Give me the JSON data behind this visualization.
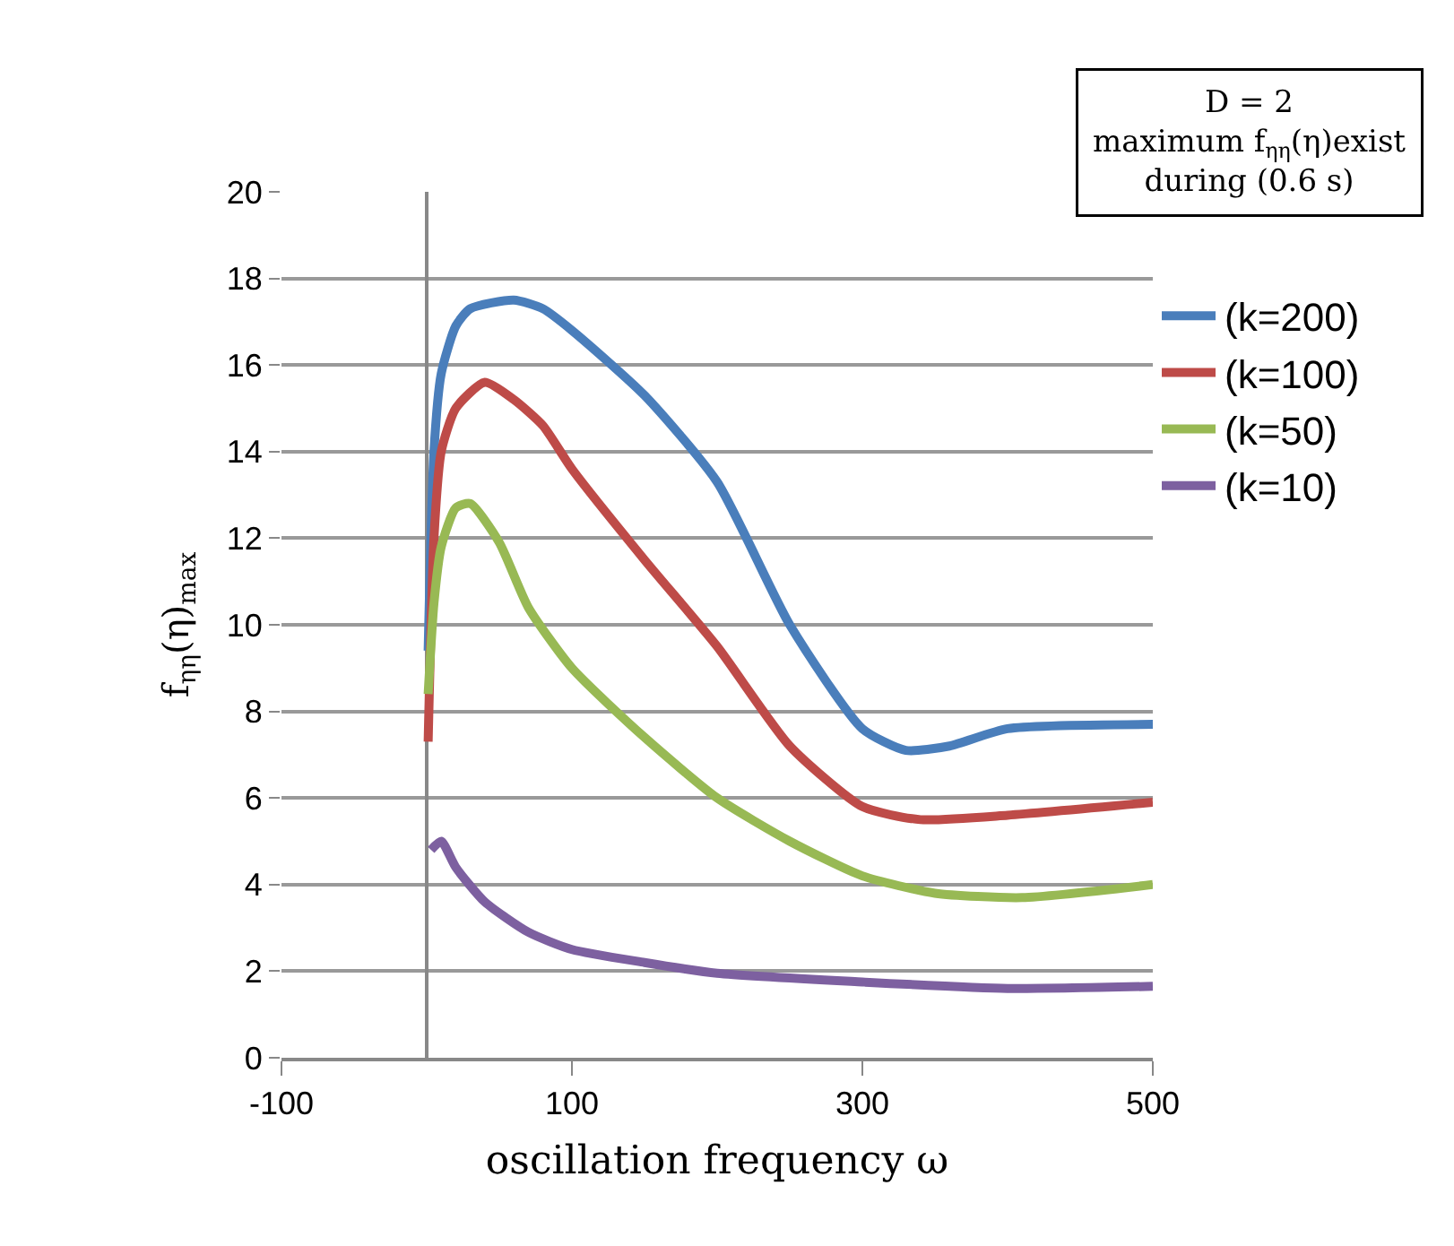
{
  "chart_data": {
    "type": "line",
    "xlabel": "oscillation frequency ω",
    "ylabel": "f$_{ηη}$(η)$_{max}$",
    "annotations": [
      "D = 2\nmaximum f$_{ηη}$(η)exist\nduring (0.6 s)"
    ],
    "xlim": [
      -100,
      500
    ],
    "xticks": [
      -100,
      100,
      300,
      500
    ],
    "ylim": [
      0,
      20
    ],
    "yticks": [
      0,
      2,
      4,
      6,
      8,
      10,
      12,
      14,
      16,
      18,
      20
    ],
    "grid": "y",
    "legend": "right",
    "marker": "none",
    "line_style": "solid",
    "series": [
      {
        "name": "(k=200)",
        "color": "#4a7ebb",
        "x": [
          1,
          5,
          10,
          20,
          30,
          60,
          80,
          100,
          150,
          200,
          250,
          300,
          330,
          360,
          400,
          500
        ],
        "values": [
          9.4,
          14,
          15.8,
          16.9,
          17.3,
          17.5,
          17.3,
          16.8,
          15.3,
          13.3,
          10,
          7.6,
          7.1,
          7.2,
          7.6,
          7.7
        ]
      },
      {
        "name": "(k=100)",
        "color": "#be4b48",
        "x": [
          1,
          5,
          10,
          20,
          40,
          60,
          80,
          100,
          150,
          200,
          250,
          300,
          340,
          400,
          500
        ],
        "values": [
          7.3,
          12,
          14,
          15,
          15.6,
          15.2,
          14.6,
          13.6,
          11.5,
          9.5,
          7.2,
          5.8,
          5.5,
          5.6,
          5.9
        ]
      },
      {
        "name": "(k=50)",
        "color": "#98b954",
        "x": [
          1,
          5,
          10,
          20,
          30,
          50,
          70,
          100,
          150,
          200,
          250,
          300,
          350,
          410,
          500
        ],
        "values": [
          8.4,
          10.5,
          11.8,
          12.7,
          12.8,
          11.9,
          10.4,
          9.0,
          7.4,
          6.0,
          5.0,
          4.2,
          3.8,
          3.7,
          4.0
        ]
      },
      {
        "name": "(k=10)",
        "color": "#7d60a0",
        "x": [
          3,
          10,
          20,
          40,
          70,
          100,
          150,
          200,
          300,
          400,
          500
        ],
        "values": [
          4.8,
          5.0,
          4.4,
          3.6,
          2.9,
          2.5,
          2.2,
          1.95,
          1.75,
          1.6,
          1.65
        ]
      }
    ]
  }
}
